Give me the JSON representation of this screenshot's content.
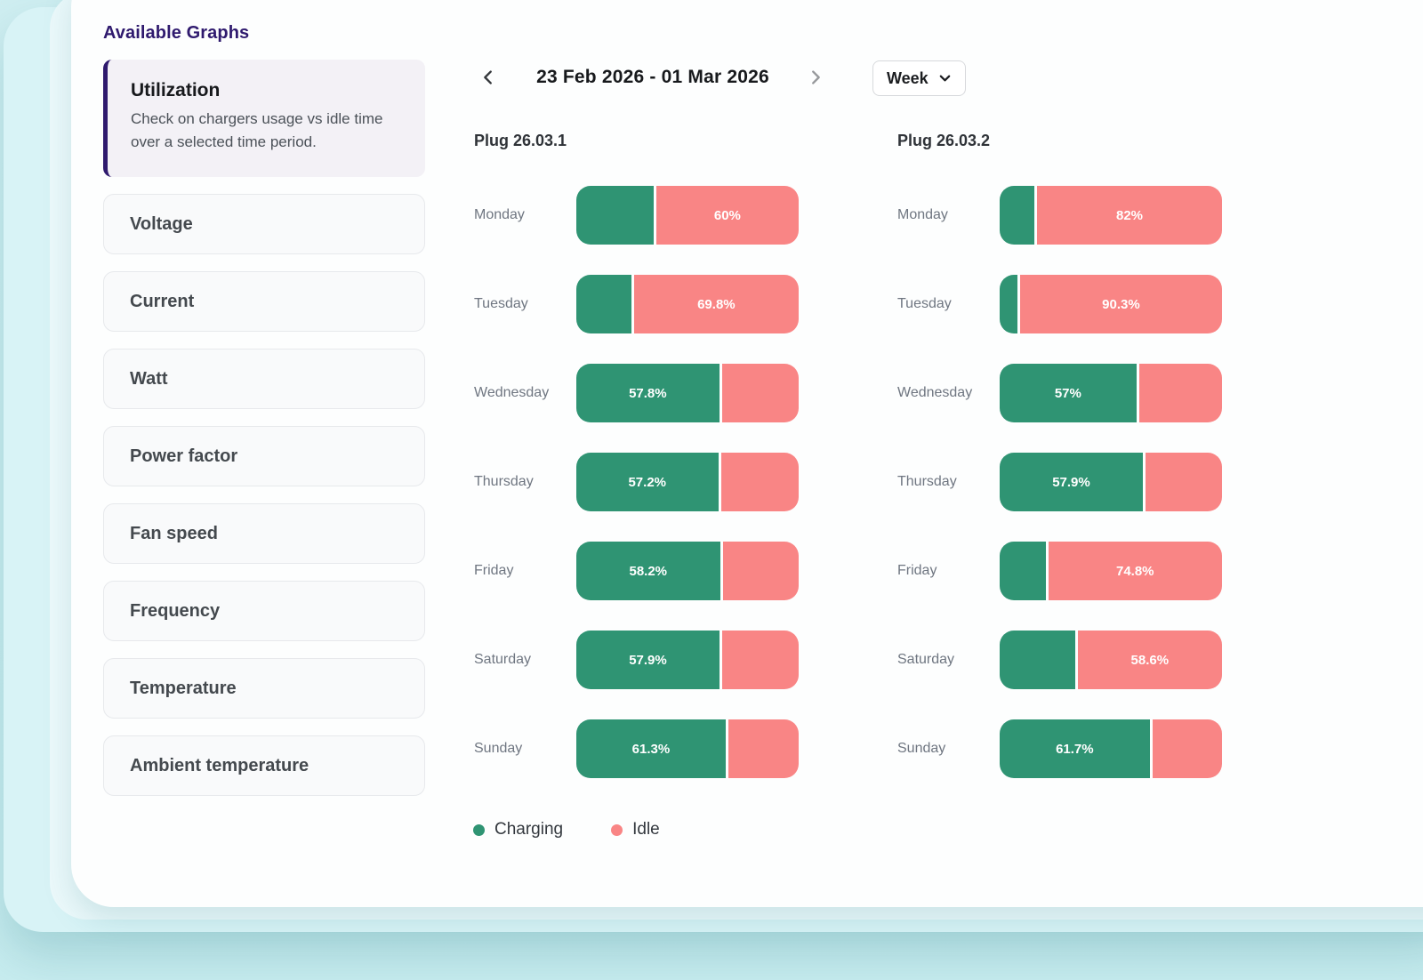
{
  "sidebar": {
    "title": "Available Graphs",
    "selected_item": {
      "label": "Utilization",
      "description": "Check on chargers usage vs idle time over a selected time period."
    },
    "items": [
      {
        "label": "Voltage"
      },
      {
        "label": "Current"
      },
      {
        "label": "Watt"
      },
      {
        "label": "Power factor"
      },
      {
        "label": "Fan speed"
      },
      {
        "label": "Frequency"
      },
      {
        "label": "Temperature"
      },
      {
        "label": "Ambient temperature"
      }
    ]
  },
  "header": {
    "date_range": "23 Feb 2026 - 01 Mar 2026",
    "period_label": "Week"
  },
  "legend": {
    "items": [
      {
        "label": "Charging",
        "color": "#2f9473"
      },
      {
        "label": "Idle",
        "color": "#f98585"
      }
    ]
  },
  "colors": {
    "charging": "#2f9473",
    "idle": "#f98585",
    "accent_purple": "#2f1a6e",
    "page_background": "#cbedf0"
  },
  "chart_data": [
    {
      "type": "bar",
      "orientation": "horizontal",
      "stacked": true,
      "unit": "%",
      "title": "Plug 26.03.1",
      "categories": [
        "Monday",
        "Tuesday",
        "Wednesday",
        "Thursday",
        "Friday",
        "Saturday",
        "Sunday"
      ],
      "series": [
        {
          "name": "Charging",
          "values": [
            40,
            30.2,
            57.8,
            57.2,
            58.2,
            57.9,
            61.3
          ]
        },
        {
          "name": "Idle",
          "values": [
            60,
            69.8,
            42.2,
            42.8,
            41.8,
            42.1,
            38.7
          ]
        }
      ],
      "visible_labels": [
        {
          "category": "Monday",
          "text": "60%",
          "segment": "Idle"
        },
        {
          "category": "Tuesday",
          "text": "69.8%",
          "segment": "Idle"
        },
        {
          "category": "Wednesday",
          "text": "57.8%",
          "segment": "Charging"
        },
        {
          "category": "Thursday",
          "text": "57.2%",
          "segment": "Charging"
        },
        {
          "category": "Friday",
          "text": "58.2%",
          "segment": "Charging"
        },
        {
          "category": "Saturday",
          "text": "57.9%",
          "segment": "Charging"
        },
        {
          "category": "Sunday",
          "text": "61.3%",
          "segment": "Charging"
        }
      ]
    },
    {
      "type": "bar",
      "orientation": "horizontal",
      "stacked": true,
      "unit": "%",
      "title": "Plug 26.03.2",
      "categories": [
        "Monday",
        "Tuesday",
        "Wednesday",
        "Thursday",
        "Friday",
        "Saturday",
        "Sunday"
      ],
      "series": [
        {
          "name": "Charging",
          "values": [
            18,
            9.7,
            57,
            57.9,
            25.2,
            41.4,
            61.7
          ]
        },
        {
          "name": "Idle",
          "values": [
            82,
            90.3,
            43,
            42.1,
            74.8,
            58.6,
            38.3
          ]
        }
      ],
      "visible_labels": [
        {
          "category": "Monday",
          "text": "82%",
          "segment": "Idle"
        },
        {
          "category": "Tuesday",
          "text": "90.3%",
          "segment": "Idle"
        },
        {
          "category": "Wednesday",
          "text": "57%",
          "segment": "Charging"
        },
        {
          "category": "Thursday",
          "text": "57.9%",
          "segment": "Charging"
        },
        {
          "category": "Friday",
          "text": "74.8%",
          "segment": "Idle"
        },
        {
          "category": "Saturday",
          "text": "58.6%",
          "segment": "Idle"
        },
        {
          "category": "Sunday",
          "text": "61.7%",
          "segment": "Charging"
        }
      ]
    }
  ]
}
